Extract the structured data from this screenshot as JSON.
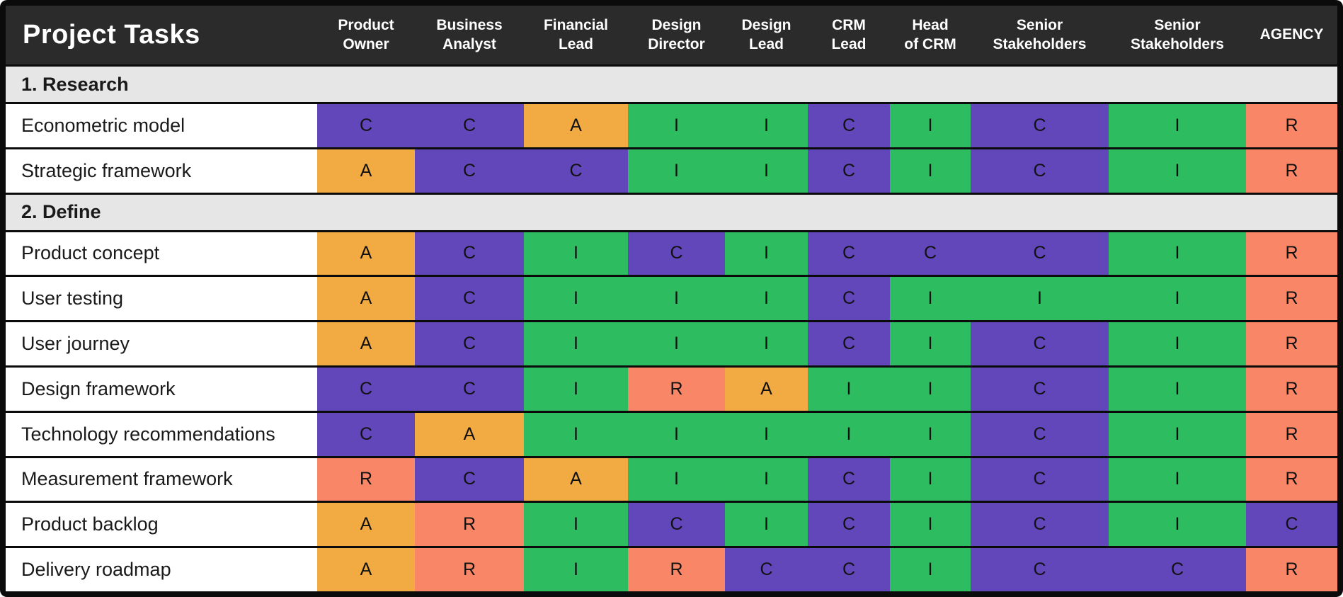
{
  "title": "Project Tasks",
  "colors": {
    "C": "#6147ba",
    "A": "#f2ab43",
    "I": "#2ebc61",
    "R": "#f98767",
    "header_bg": "#2b2b2b",
    "section_bg": "#e6e6e6",
    "row_bg": "#ffffff",
    "border": "#0b0b0b"
  },
  "chart_data": {
    "type": "table",
    "title": "Project Tasks",
    "columns": [
      {
        "label": "Product Owner",
        "lines": [
          "Product",
          "Owner"
        ]
      },
      {
        "label": "Business Analyst",
        "lines": [
          "Business",
          "Analyst"
        ]
      },
      {
        "label": "Financial Lead",
        "lines": [
          "Financial",
          "Lead"
        ]
      },
      {
        "label": "Design Director",
        "lines": [
          "Design",
          "Director"
        ]
      },
      {
        "label": "Design Lead",
        "lines": [
          "Design",
          "Lead"
        ]
      },
      {
        "label": "CRM Lead",
        "lines": [
          "CRM",
          "Lead"
        ]
      },
      {
        "label": "Head of CRM",
        "lines": [
          "Head",
          "of CRM"
        ]
      },
      {
        "label": "Senior Stakeholders",
        "lines": [
          "Senior",
          "Stakeholders"
        ]
      },
      {
        "label": "Senior Stakeholders",
        "lines": [
          "Senior",
          "Stakeholders"
        ]
      },
      {
        "label": "AGENCY",
        "lines": [
          "AGENCY"
        ]
      }
    ],
    "sections": [
      {
        "title": "1. Research",
        "rows": [
          {
            "task": "Econometric model",
            "values": [
              "C",
              "C",
              "A",
              "I",
              "I",
              "C",
              "I",
              "C",
              "I",
              "R"
            ]
          },
          {
            "task": "Strategic framework",
            "values": [
              "A",
              "C",
              "C",
              "I",
              "I",
              "C",
              "I",
              "C",
              "I",
              "R"
            ]
          }
        ]
      },
      {
        "title": "2. Define",
        "rows": [
          {
            "task": "Product concept",
            "values": [
              "A",
              "C",
              "I",
              "C",
              "I",
              "C",
              "C",
              "C",
              "I",
              "R"
            ]
          },
          {
            "task": "User testing",
            "values": [
              "A",
              "C",
              "I",
              "I",
              "I",
              "C",
              "I",
              "I",
              "I",
              "R"
            ]
          },
          {
            "task": "User journey",
            "values": [
              "A",
              "C",
              "I",
              "I",
              "I",
              "C",
              "I",
              "C",
              "I",
              "R"
            ]
          },
          {
            "task": "Design framework",
            "values": [
              "C",
              "C",
              "I",
              "R",
              "A",
              "I",
              "I",
              "C",
              "I",
              "R"
            ]
          },
          {
            "task": "Technology recommendations",
            "values": [
              "C",
              "A",
              "I",
              "I",
              "I",
              "I",
              "I",
              "C",
              "I",
              "R"
            ]
          },
          {
            "task": "Measurement framework",
            "values": [
              "R",
              "C",
              "A",
              "I",
              "I",
              "C",
              "I",
              "C",
              "I",
              "R"
            ]
          },
          {
            "task": "Product backlog",
            "values": [
              "A",
              "R",
              "I",
              "C",
              "I",
              "C",
              "I",
              "C",
              "I",
              "C"
            ]
          },
          {
            "task": "Delivery roadmap",
            "values": [
              "A",
              "R",
              "I",
              "R",
              "C",
              "C",
              "I",
              "C",
              "C",
              "R"
            ]
          }
        ]
      }
    ]
  }
}
